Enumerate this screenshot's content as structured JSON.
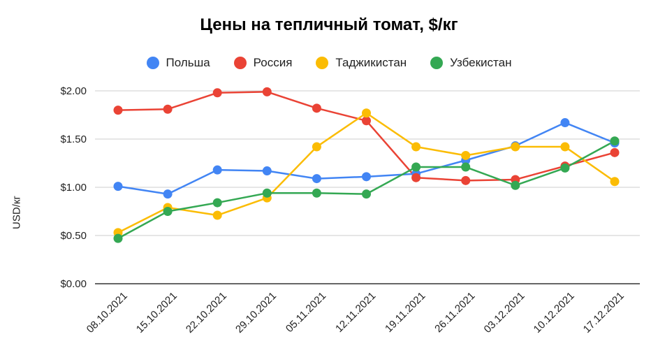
{
  "chart_data": {
    "type": "line",
    "title": "Цены на тепличный томат, $/кг",
    "xlabel": "",
    "ylabel": "USD/кг",
    "ylim": [
      0,
      2
    ],
    "yticks": [
      "$0.00",
      "$0.50",
      "$1.00",
      "$1.50",
      "$2.00"
    ],
    "grid": true,
    "legend_position": "top",
    "categories": [
      "08.10.2021",
      "15.10.2021",
      "22.10.2021",
      "29.10.2021",
      "05.11.2021",
      "12.11.2021",
      "19.11.2021",
      "26.11.2021",
      "03.12.2021",
      "10.12.2021",
      "17.12.2021"
    ],
    "series": [
      {
        "name": "Польша",
        "color": "#4285F4",
        "values": [
          1.01,
          0.93,
          1.18,
          1.17,
          1.09,
          1.11,
          1.14,
          1.28,
          1.43,
          1.67,
          1.46
        ]
      },
      {
        "name": "Россия",
        "color": "#EA4335",
        "values": [
          1.8,
          1.81,
          1.98,
          1.99,
          1.82,
          1.69,
          1.1,
          1.07,
          1.08,
          1.22,
          1.36
        ]
      },
      {
        "name": "Таджикистан",
        "color": "#FBBC04",
        "values": [
          0.53,
          0.79,
          0.71,
          0.89,
          1.42,
          1.77,
          1.42,
          1.33,
          1.42,
          1.42,
          1.06
        ]
      },
      {
        "name": "Узбекистан",
        "color": "#34A853",
        "values": [
          0.47,
          0.75,
          0.84,
          0.94,
          0.94,
          0.93,
          1.21,
          1.21,
          1.02,
          1.2,
          1.48
        ]
      }
    ]
  }
}
